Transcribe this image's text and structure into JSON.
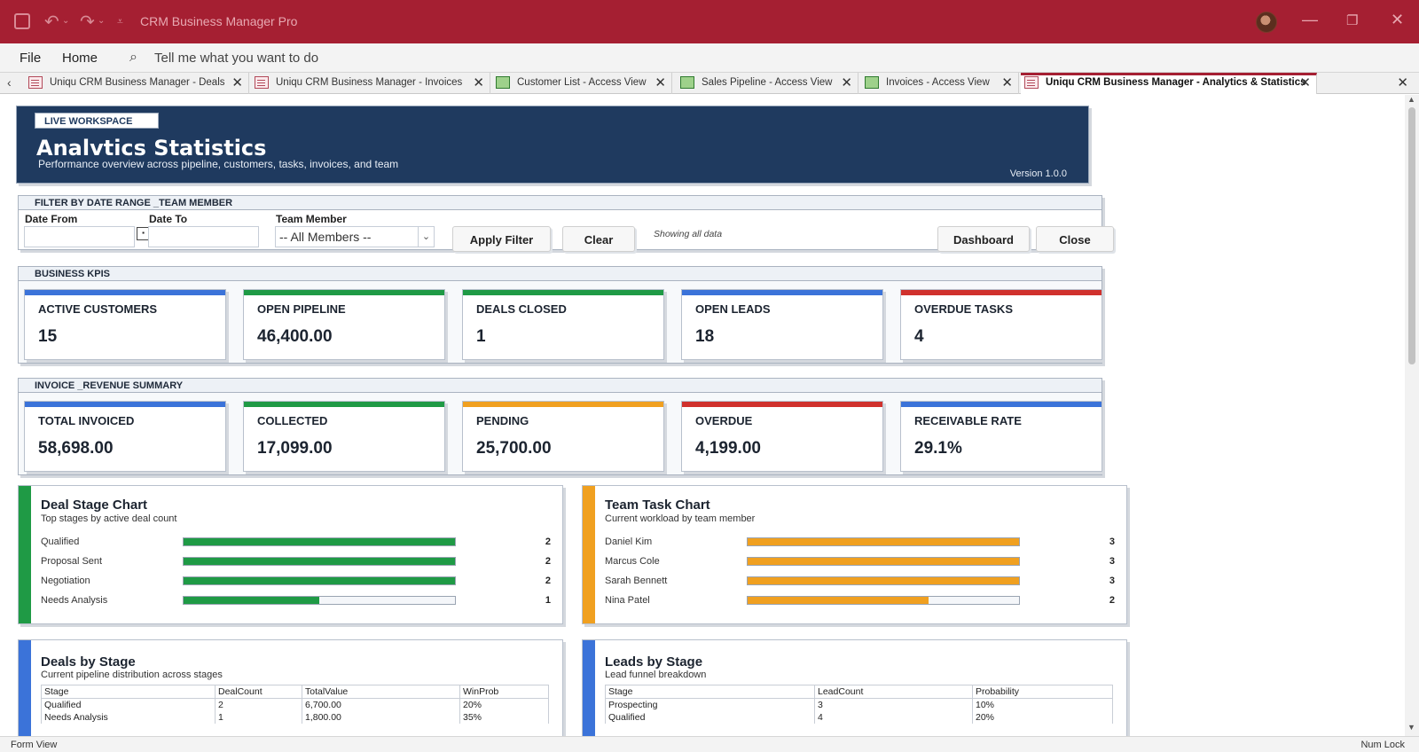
{
  "app": {
    "title": "CRM Business Manager Pro",
    "colors": {
      "titlebar": "#a51f32",
      "header": "#1f3a5f",
      "blue": "#3b73d9",
      "green": "#1f9a45",
      "red": "#d0312d",
      "orange": "#f0a020"
    }
  },
  "ribbon": {
    "file": "File",
    "home": "Home",
    "tell_me": "Tell me what you want to do"
  },
  "tabs": [
    {
      "label": "Uniqu CRM Business Manager - Deals",
      "icon": "form-icon"
    },
    {
      "label": "Uniqu CRM Business Manager - Invoices",
      "icon": "form-icon"
    },
    {
      "label": "Customer List - Access View",
      "icon": "table-icon"
    },
    {
      "label": "Sales Pipeline - Access View",
      "icon": "table-icon"
    },
    {
      "label": "Invoices - Access View",
      "icon": "table-icon"
    },
    {
      "label": "Uniqu CRM Business Manager - Analytics & Statistics",
      "icon": "form-icon",
      "active": true
    }
  ],
  "header": {
    "badge": "LIVE WORKSPACE",
    "title": "Analvtics  Statistics",
    "subtitle": "Performance overview across pipeline, customers, tasks, invoices, and team",
    "version": "Version 1.0.0"
  },
  "filter": {
    "section_title": "FILTER BY DATE RANGE _TEAM MEMBER",
    "date_from_label": "Date From",
    "date_from_value": "",
    "date_to_label": "Date To",
    "date_to_value": "",
    "team_member_label": "Team Member",
    "team_member_value": "-- All Members --",
    "apply_label": "Apply Filter",
    "clear_label": "Clear",
    "status": "Showing all data",
    "dashboard_label": "Dashboard",
    "close_label": "Close"
  },
  "kpis": {
    "section_title": "BUSINESS KPIS",
    "items": [
      {
        "label": "ACTIVE CUSTOMERS",
        "value": "15",
        "color": "#3b73d9"
      },
      {
        "label": "OPEN PIPELINE",
        "value": "46,400.00",
        "color": "#1f9a45"
      },
      {
        "label": "DEALS CLOSED",
        "value": "1",
        "color": "#1f9a45"
      },
      {
        "label": "OPEN LEADS",
        "value": "18",
        "color": "#3b73d9"
      },
      {
        "label": "OVERDUE TASKS",
        "value": "4",
        "color": "#d0312d"
      }
    ]
  },
  "invoice_kpis": {
    "section_title": "INVOICE _REVENUE SUMMARY",
    "items": [
      {
        "label": "TOTAL INVOICED",
        "value": "58,698.00",
        "color": "#3b73d9"
      },
      {
        "label": "COLLECTED",
        "value": "17,099.00",
        "color": "#1f9a45"
      },
      {
        "label": "PENDING",
        "value": "25,700.00",
        "color": "#f0a020"
      },
      {
        "label": "OVERDUE",
        "value": "4,199.00",
        "color": "#d0312d"
      },
      {
        "label": "RECEIVABLE RATE",
        "value": "29.1%",
        "color": "#3b73d9"
      }
    ]
  },
  "deal_stage_chart": {
    "title": "Deal Stage Chart",
    "subtitle": "Top stages by active deal count",
    "color": "#1f9a45",
    "max": 2,
    "rows": [
      {
        "label": "Qualified",
        "value": 2,
        "value_text": "2"
      },
      {
        "label": "Proposal Sent",
        "value": 2,
        "value_text": "2"
      },
      {
        "label": "Negotiation",
        "value": 2,
        "value_text": "2"
      },
      {
        "label": "Needs Analysis",
        "value": 1,
        "value_text": "1"
      }
    ]
  },
  "team_task_chart": {
    "title": "Team Task Chart",
    "subtitle": "Current workload by team member",
    "color": "#f0a020",
    "max": 3,
    "rows": [
      {
        "label": "Daniel Kim",
        "value": 3,
        "value_text": "3"
      },
      {
        "label": "Marcus Cole",
        "value": 3,
        "value_text": "3"
      },
      {
        "label": "Sarah Bennett",
        "value": 3,
        "value_text": "3"
      },
      {
        "label": "Nina Patel",
        "value": 2,
        "value_text": "2"
      }
    ]
  },
  "deals_by_stage": {
    "title": "Deals by Stage",
    "subtitle": "Current pipeline distribution across stages",
    "color": "#3b73d9",
    "columns": [
      "Stage",
      "DealCount",
      "TotalValue",
      "WinProb"
    ],
    "rows": [
      [
        "Qualified",
        "2",
        "6,700.00",
        "20%"
      ],
      [
        "Needs Analysis",
        "1",
        "1,800.00",
        "35%"
      ]
    ]
  },
  "leads_by_stage": {
    "title": "Leads by Stage",
    "subtitle": "Lead funnel breakdown",
    "color": "#3b73d9",
    "columns": [
      "Stage",
      "LeadCount",
      "Probability"
    ],
    "rows": [
      [
        "Prospecting",
        "3",
        "10%"
      ],
      [
        "Qualified",
        "4",
        "20%"
      ]
    ]
  },
  "status": {
    "left": "Form View",
    "right": "Num Lock"
  }
}
